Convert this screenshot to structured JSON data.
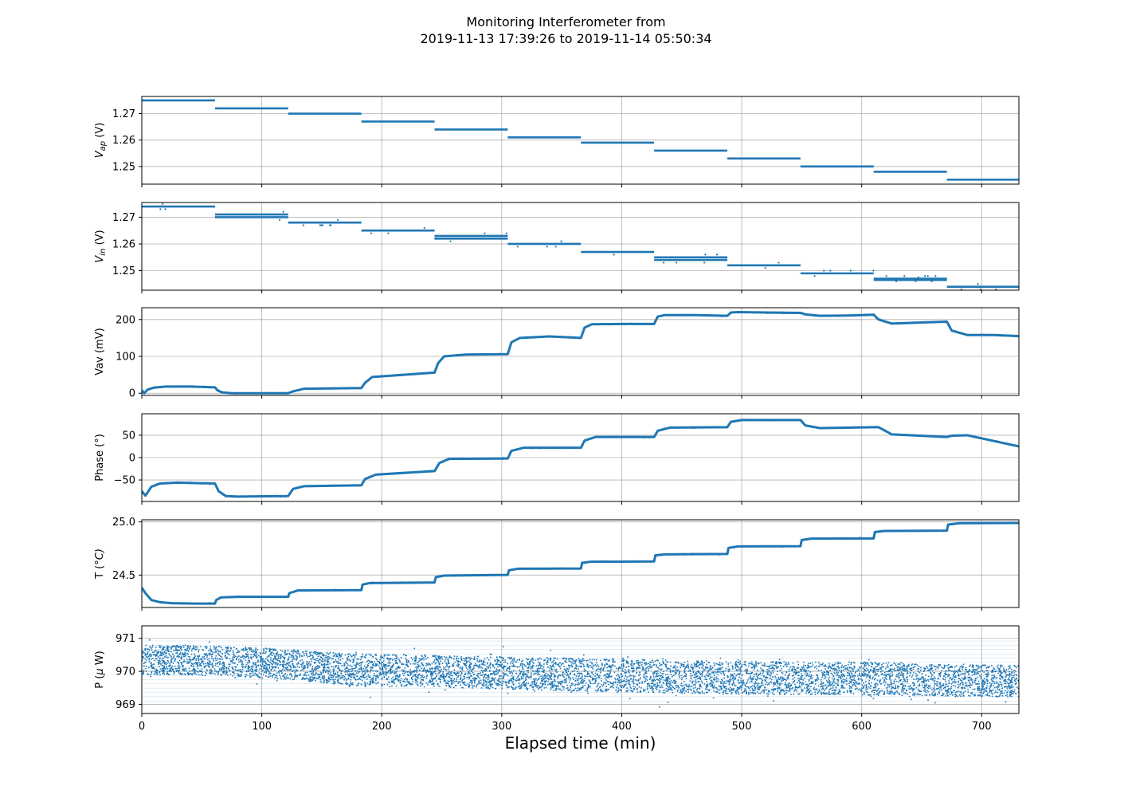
{
  "title_line1": "Monitoring Interferometer from",
  "title_line2": "2019-11-13 17:39:26 to 2019-11-14 05:50:34",
  "xlabel": "Elapsed time (min)",
  "colors": {
    "series": "#1f77b4",
    "grid": "#b0b0b0",
    "axes": "#000000"
  },
  "chart_data": [
    {
      "type": "scatter",
      "ylabel": "V_ap (V)",
      "ylabel_main": "V",
      "ylabel_sub": "ap",
      "ylabel_tail": " (V)",
      "xlim": [
        0,
        731
      ],
      "ylim": [
        1.2433,
        1.2765
      ],
      "x_ticks": [
        0,
        100,
        200,
        300,
        400,
        500,
        600,
        700
      ],
      "y_ticks": [
        1.25,
        1.26,
        1.27
      ],
      "y_tick_labels": [
        "1.25",
        "1.26",
        "1.27"
      ],
      "show_x_tick_labels": false,
      "grid": true,
      "segments": [
        {
          "x": [
            0,
            61
          ],
          "y": 1.275
        },
        {
          "x": [
            61,
            122
          ],
          "y": 1.272
        },
        {
          "x": [
            122,
            183
          ],
          "y": 1.27
        },
        {
          "x": [
            183,
            244
          ],
          "y": 1.267
        },
        {
          "x": [
            244,
            305
          ],
          "y": 1.264
        },
        {
          "x": [
            305,
            366
          ],
          "y": 1.261
        },
        {
          "x": [
            366,
            427
          ],
          "y": 1.259
        },
        {
          "x": [
            427,
            488
          ],
          "y": 1.256
        },
        {
          "x": [
            488,
            549
          ],
          "y": 1.253
        },
        {
          "x": [
            549,
            610
          ],
          "y": 1.25
        },
        {
          "x": [
            610,
            671
          ],
          "y": 1.248
        },
        {
          "x": [
            671,
            731
          ],
          "y": 1.245
        }
      ]
    },
    {
      "type": "scatter",
      "ylabel": "V_in (V)",
      "ylabel_main": "V",
      "ylabel_sub": "in",
      "ylabel_tail": " (V)",
      "xlim": [
        0,
        731
      ],
      "ylim": [
        1.2427,
        1.2755
      ],
      "x_ticks": [
        0,
        100,
        200,
        300,
        400,
        500,
        600,
        700
      ],
      "y_ticks": [
        1.25,
        1.26,
        1.27
      ],
      "y_tick_labels": [
        "1.25",
        "1.26",
        "1.27"
      ],
      "show_x_tick_labels": false,
      "grid": true,
      "segments": [
        {
          "x": [
            0,
            61
          ],
          "y": 1.274
        },
        {
          "x": [
            61,
            122
          ],
          "y": 1.271
        },
        {
          "x": [
            61,
            122
          ],
          "y": 1.27
        },
        {
          "x": [
            122,
            183
          ],
          "y": 1.268
        },
        {
          "x": [
            183,
            244
          ],
          "y": 1.265
        },
        {
          "x": [
            244,
            305
          ],
          "y": 1.263
        },
        {
          "x": [
            244,
            305
          ],
          "y": 1.262
        },
        {
          "x": [
            305,
            366
          ],
          "y": 1.26
        },
        {
          "x": [
            366,
            427
          ],
          "y": 1.257
        },
        {
          "x": [
            427,
            488
          ],
          "y": 1.255
        },
        {
          "x": [
            427,
            488
          ],
          "y": 1.254
        },
        {
          "x": [
            488,
            549
          ],
          "y": 1.252
        },
        {
          "x": [
            549,
            610
          ],
          "y": 1.249
        },
        {
          "x": [
            610,
            671
          ],
          "y": 1.247
        },
        {
          "x": [
            610,
            671
          ],
          "y": 1.2465
        },
        {
          "x": [
            671,
            731
          ],
          "y": 1.244
        }
      ]
    },
    {
      "type": "line",
      "ylabel": "Vav (mV)",
      "xlim": [
        0,
        731
      ],
      "ylim": [
        -6,
        232
      ],
      "x_ticks": [
        0,
        100,
        200,
        300,
        400,
        500,
        600,
        700
      ],
      "y_ticks": [
        0,
        100,
        200
      ],
      "y_tick_labels": [
        "0",
        "100",
        "200"
      ],
      "show_x_tick_labels": false,
      "grid": true,
      "x": [
        0,
        2,
        5,
        10,
        20,
        40,
        61,
        63,
        67,
        75,
        100,
        122,
        126,
        135,
        183,
        186,
        192,
        210,
        244,
        247,
        252,
        270,
        305,
        308,
        315,
        340,
        366,
        369,
        375,
        400,
        427,
        430,
        436,
        460,
        488,
        491,
        497,
        520,
        549,
        553,
        565,
        590,
        610,
        614,
        625,
        650,
        671,
        675,
        688,
        710,
        731
      ],
      "y": [
        8,
        0,
        10,
        15,
        18,
        18,
        16,
        8,
        2,
        0,
        0,
        0,
        5,
        12,
        14,
        28,
        44,
        48,
        56,
        82,
        100,
        105,
        106,
        138,
        150,
        154,
        150,
        178,
        187,
        188,
        188,
        208,
        212,
        212,
        210,
        219,
        220,
        219,
        218,
        214,
        210,
        211,
        213,
        200,
        189,
        192,
        194,
        170,
        158,
        158,
        155
      ]
    },
    {
      "type": "line",
      "ylabel": "Phase (°)",
      "xlim": [
        0,
        731
      ],
      "ylim": [
        -98,
        98
      ],
      "x_ticks": [
        0,
        100,
        200,
        300,
        400,
        500,
        600,
        700
      ],
      "y_ticks": [
        -50,
        0,
        50
      ],
      "y_tick_labels": [
        "−50",
        "0",
        "50"
      ],
      "show_x_tick_labels": false,
      "grid": true,
      "x": [
        0,
        3,
        8,
        15,
        30,
        61,
        64,
        70,
        80,
        122,
        126,
        135,
        183,
        186,
        195,
        244,
        248,
        256,
        305,
        308,
        318,
        366,
        369,
        378,
        427,
        430,
        440,
        488,
        491,
        500,
        549,
        553,
        565,
        610,
        614,
        625,
        671,
        675,
        688,
        731
      ],
      "y": [
        -75,
        -85,
        -65,
        -58,
        -56,
        -58,
        -75,
        -86,
        -87,
        -86,
        -70,
        -64,
        -62,
        -48,
        -38,
        -30,
        -12,
        -3,
        -2,
        15,
        22,
        22,
        38,
        46,
        46,
        60,
        67,
        68,
        80,
        84,
        84,
        72,
        66,
        68,
        68,
        52,
        46,
        49,
        50,
        25
      ]
    },
    {
      "type": "line",
      "ylabel": "T (°C)",
      "ylabel_main": "T (°",
      "ylabel_tail": "C)",
      "xlim": [
        0,
        731
      ],
      "ylim": [
        24.195,
        25.02
      ],
      "x_ticks": [
        0,
        100,
        200,
        300,
        400,
        500,
        600,
        700
      ],
      "y_ticks": [
        24.5,
        25.0
      ],
      "y_tick_labels": [
        "24.5",
        "25.0"
      ],
      "show_x_tick_labels": false,
      "grid": true,
      "x": [
        0,
        3,
        8,
        15,
        25,
        45,
        61,
        62,
        66,
        80,
        122,
        123,
        130,
        183,
        184,
        190,
        244,
        245,
        252,
        305,
        306,
        314,
        366,
        367,
        374,
        427,
        428,
        436,
        488,
        489,
        497,
        549,
        550,
        558,
        610,
        611,
        619,
        671,
        672,
        682,
        731
      ],
      "y": [
        24.38,
        24.33,
        24.265,
        24.245,
        24.235,
        24.232,
        24.232,
        24.265,
        24.29,
        24.295,
        24.295,
        24.33,
        24.355,
        24.358,
        24.41,
        24.425,
        24.43,
        24.48,
        24.495,
        24.502,
        24.545,
        24.56,
        24.562,
        24.615,
        24.625,
        24.628,
        24.685,
        24.695,
        24.698,
        24.755,
        24.77,
        24.772,
        24.83,
        24.843,
        24.845,
        24.905,
        24.915,
        24.918,
        24.975,
        24.988,
        24.99
      ]
    },
    {
      "type": "scatter",
      "ylabel": "P (μ W)",
      "ylabel_main": "P (",
      "ylabel_italic": "μ",
      "ylabel_tail": " W)",
      "xlim": [
        0,
        731
      ],
      "ylim": [
        968.72,
        971.38
      ],
      "x_ticks": [
        0,
        100,
        200,
        300,
        400,
        500,
        600,
        700
      ],
      "x_tick_labels": [
        "0",
        "100",
        "200",
        "300",
        "400",
        "500",
        "600",
        "700"
      ],
      "y_ticks": [
        969,
        970,
        971
      ],
      "y_tick_labels": [
        "969",
        "970",
        "971"
      ],
      "show_x_tick_labels": true,
      "grid": true,
      "band_x": [
        0,
        60,
        105,
        175,
        250,
        330,
        420,
        500,
        600,
        680,
        731
      ],
      "band_center": [
        970.35,
        970.32,
        970.25,
        970.05,
        970.0,
        969.92,
        969.85,
        969.8,
        969.78,
        969.72,
        969.7
      ],
      "band_halfwidth": [
        0.45,
        0.45,
        0.45,
        0.48,
        0.48,
        0.5,
        0.5,
        0.5,
        0.5,
        0.48,
        0.48
      ]
    }
  ]
}
